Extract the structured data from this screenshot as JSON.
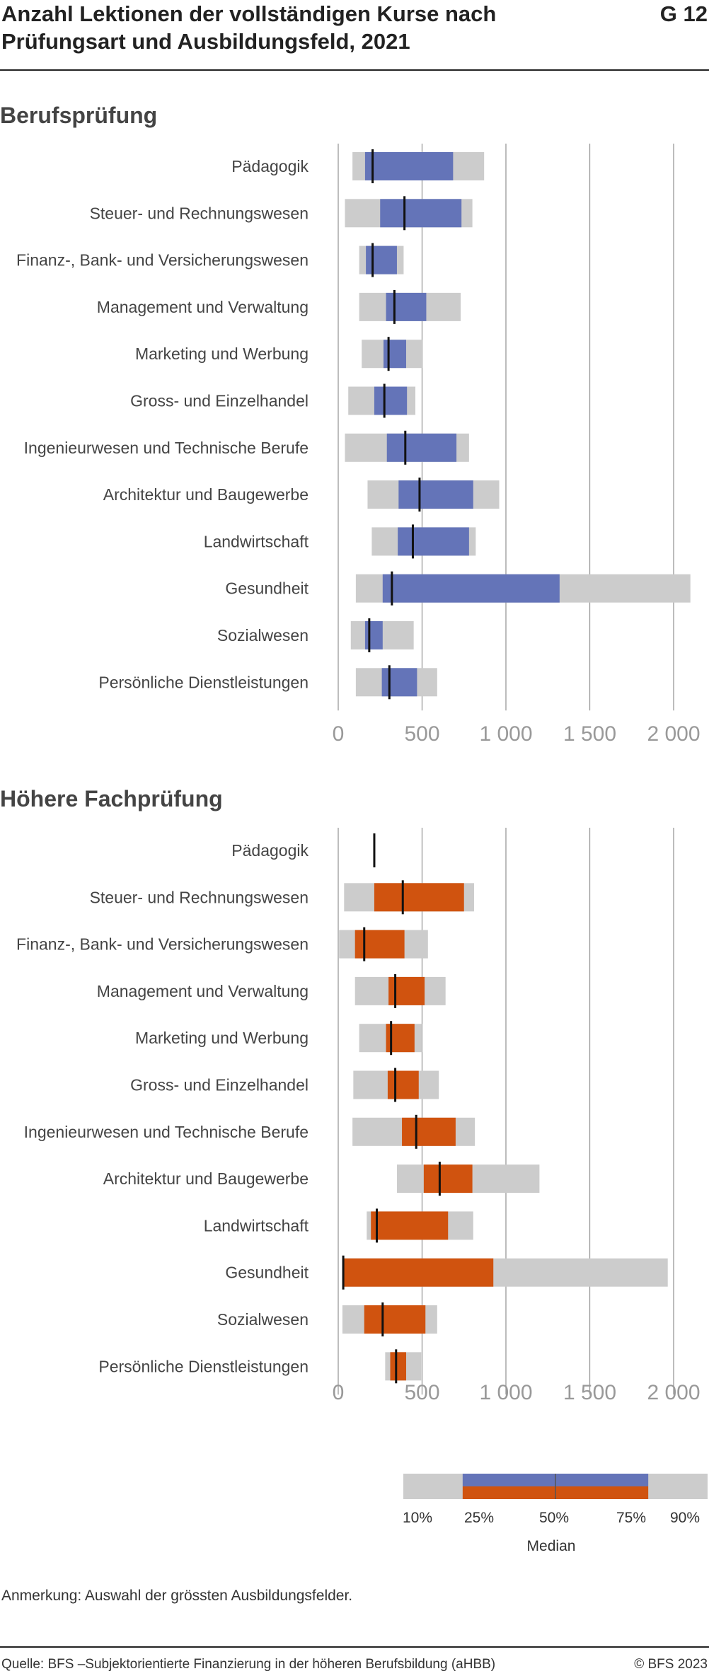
{
  "header": {
    "title": "Anzahl Lektionen der vollständigen Kurse nach Prüfungsart und Ausbildungsfeld, 2021",
    "figure_number": "G 12"
  },
  "sections": {
    "bp_title": "Berufsprüfung",
    "hfp_title": "Höhere Fachprüfung"
  },
  "colors": {
    "berufspruefung": "#6474b8",
    "hoehere_fachpruefung": "#d0530f",
    "range_10_90": "#cccccc",
    "median": "#111111",
    "grid": "#999999"
  },
  "chart_data": [
    {
      "type": "boxplot-range",
      "title": "Berufsprüfung",
      "xlim": [
        0,
        2000
      ],
      "xticks": [
        0,
        500,
        1000,
        1500,
        2000
      ],
      "xtick_labels": [
        "0",
        "500",
        "1 000",
        "1 500",
        "2 000"
      ],
      "categories": [
        "Pädagogik",
        "Steuer- und Rechnungswesen",
        "Finanz-, Bank- und Versicherungswesen",
        "Management und Verwaltung",
        "Marketing und Werbung",
        "Gross- und Einzelhandel",
        "Ingenieurwesen und Technische Berufe",
        "Architektur und Baugewerbe",
        "Landwirtschaft",
        "Gesundheit",
        "Sozialwesen",
        "Persönliche Dienstleistungen"
      ],
      "p10": [
        85,
        40,
        125,
        125,
        140,
        60,
        40,
        175,
        200,
        105,
        75,
        105
      ],
      "p25": [
        160,
        250,
        165,
        285,
        270,
        215,
        290,
        360,
        355,
        265,
        160,
        260
      ],
      "median": [
        205,
        395,
        205,
        335,
        300,
        275,
        400,
        485,
        445,
        320,
        185,
        305
      ],
      "p75": [
        685,
        735,
        350,
        525,
        405,
        410,
        705,
        805,
        780,
        1320,
        265,
        470
      ],
      "p90": [
        870,
        800,
        390,
        730,
        505,
        460,
        780,
        960,
        820,
        2100,
        450,
        590
      ]
    },
    {
      "type": "boxplot-range",
      "title": "Höhere Fachprüfung",
      "xlim": [
        0,
        2000
      ],
      "xticks": [
        0,
        500,
        1000,
        1500,
        2000
      ],
      "xtick_labels": [
        "0",
        "500",
        "1 000",
        "1 500",
        "2 000"
      ],
      "categories": [
        "Pädagogik",
        "Steuer- und Rechnungswesen",
        "Finanz-, Bank- und Versicherungswesen",
        "Management und Verwaltung",
        "Marketing und Werbung",
        "Gross- und Einzelhandel",
        "Ingenieurwesen und Technische Berufe",
        "Architektur und Baugewerbe",
        "Landwirtschaft",
        "Gesundheit",
        "Sozialwesen",
        "Persönliche Dienstleistungen"
      ],
      "p10": [
        215,
        35,
        5,
        100,
        125,
        90,
        85,
        350,
        170,
        25,
        25,
        280
      ],
      "p25": [
        215,
        215,
        100,
        300,
        285,
        295,
        380,
        510,
        195,
        25,
        155,
        310
      ],
      "median": [
        215,
        385,
        155,
        340,
        315,
        340,
        465,
        605,
        230,
        30,
        265,
        345
      ],
      "p75": [
        215,
        750,
        395,
        515,
        455,
        480,
        700,
        800,
        655,
        925,
        520,
        405
      ],
      "p90": [
        215,
        810,
        535,
        640,
        500,
        600,
        815,
        1200,
        805,
        1965,
        590,
        495
      ]
    }
  ],
  "legend": {
    "labels": [
      "10%",
      "25%",
      "50%",
      "75%",
      "90%"
    ],
    "median_label": "Median"
  },
  "note": "Anmerkung: Auswahl der grössten Ausbildungsfelder.",
  "footer": {
    "source": "Quelle: BFS –Subjektorientierte Finanzierung in der höheren Berufsbildung (aHBB)",
    "copyright": "© BFS 2023"
  }
}
